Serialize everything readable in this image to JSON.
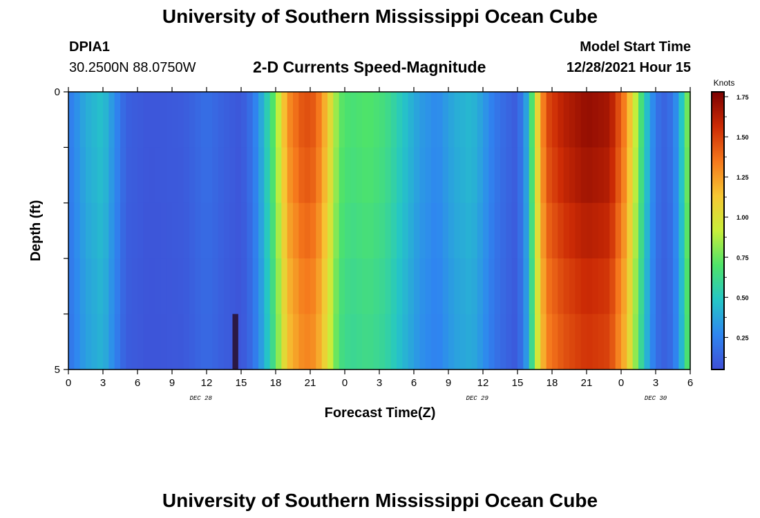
{
  "header": {
    "title": "University of Southern Mississippi Ocean Cube",
    "station_id": "DPIA1",
    "coordinates": "30.2500N  88.0750W",
    "chart_title": "2-D Currents Speed-Magnitude",
    "model_start_label": "Model Start Time",
    "model_start_value": "12/28/2021 Hour 15"
  },
  "footer": {
    "title": "University of Southern Mississippi Ocean Cube"
  },
  "colors": {
    "scale": [
      "#3f4fd6",
      "#2f86f0",
      "#25c6c6",
      "#4ee36a",
      "#c8ee3a",
      "#f6c733",
      "#f5781c",
      "#cc2b05",
      "#7c0101"
    ],
    "frame": "#000000",
    "background": "#ffffff",
    "masked_cell": "#2b1844"
  },
  "chart_data": {
    "type": "heatmap",
    "title": "2-D Currents Speed-Magnitude",
    "xlabel": "Forecast Time(Z)",
    "ylabel": "Depth (ft)",
    "x_tick_labels": [
      "0",
      "3",
      "6",
      "9",
      "12",
      "15",
      "18",
      "21",
      "0",
      "3",
      "6",
      "9",
      "12",
      "15",
      "18",
      "21",
      "0",
      "3",
      "6"
    ],
    "x_tick_hours": [
      0,
      3,
      6,
      9,
      12,
      15,
      18,
      21,
      24,
      27,
      30,
      33,
      36,
      39,
      42,
      45,
      48,
      51,
      54
    ],
    "x_range_hours": [
      0,
      54
    ],
    "date_labels": [
      {
        "text": "DEC 28",
        "hour": 11.5
      },
      {
        "text": "DEC 29",
        "hour": 35.5
      },
      {
        "text": "DEC 30",
        "hour": 51
      },
      {
        "text": "",
        "hour": 0
      }
    ],
    "y_tick_labels": [
      "0",
      "5"
    ],
    "y_range_ft": [
      0,
      5
    ],
    "depth_rows_ft": [
      0,
      0.5,
      1.5,
      2.5,
      3.5,
      4.5
    ],
    "colorbar": {
      "label": "Knots",
      "range": [
        0.05,
        1.78
      ],
      "tick_labels": [
        "0.25",
        "0.50",
        "0.75",
        "1.00",
        "1.25",
        "1.50",
        "1.75"
      ],
      "tick_values": [
        0.25,
        0.5,
        0.75,
        1.0,
        1.25,
        1.5,
        1.75
      ]
    },
    "time_step_hours": 0.5,
    "speed_profile_knots": [
      [
        0,
        0.22
      ],
      [
        1.5,
        0.4
      ],
      [
        3,
        0.48
      ],
      [
        4,
        0.3
      ],
      [
        5,
        0.12
      ],
      [
        7,
        0.08
      ],
      [
        10,
        0.1
      ],
      [
        12,
        0.18
      ],
      [
        13.5,
        0.12
      ],
      [
        15,
        0.08
      ],
      [
        16,
        0.2
      ],
      [
        17,
        0.45
      ],
      [
        18,
        0.8
      ],
      [
        19,
        1.3
      ],
      [
        20.5,
        1.5
      ],
      [
        21.5,
        1.45
      ],
      [
        22.5,
        1.15
      ],
      [
        23.5,
        0.75
      ],
      [
        24.5,
        0.68
      ],
      [
        26,
        0.72
      ],
      [
        27.5,
        0.66
      ],
      [
        29,
        0.5
      ],
      [
        30.5,
        0.35
      ],
      [
        32,
        0.28
      ],
      [
        33.5,
        0.4
      ],
      [
        35,
        0.45
      ],
      [
        36,
        0.35
      ],
      [
        37,
        0.22
      ],
      [
        38,
        0.15
      ],
      [
        39,
        0.1
      ],
      [
        40,
        0.45
      ],
      [
        40.5,
        0.95
      ],
      [
        41.5,
        1.5
      ],
      [
        43,
        1.65
      ],
      [
        45,
        1.75
      ],
      [
        47,
        1.7
      ],
      [
        48.5,
        1.3
      ],
      [
        49.5,
        0.8
      ],
      [
        50,
        0.55
      ],
      [
        51,
        0.2
      ],
      [
        52,
        0.12
      ],
      [
        53,
        0.35
      ],
      [
        53.8,
        0.8
      ],
      [
        54,
        1.1
      ]
    ],
    "depth_factors": [
      1.0,
      0.98,
      0.96,
      0.93,
      0.9,
      0.88
    ],
    "masked_cell": {
      "hour": 14.5,
      "depth_row": 5
    }
  }
}
